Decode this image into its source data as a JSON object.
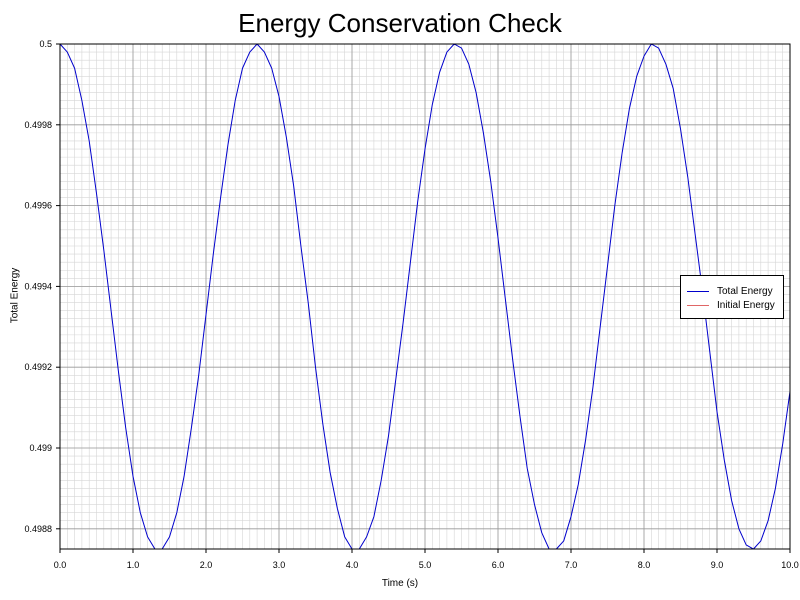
{
  "chart_data": {
    "type": "line",
    "title": "Energy Conservation Check",
    "xlabel": "Time (s)",
    "ylabel": "Total Energy",
    "xlim": [
      0,
      10
    ],
    "ylim": [
      0.49875,
      0.5
    ],
    "x_ticks": [
      "0.0",
      "1.0",
      "2.0",
      "3.0",
      "4.0",
      "5.0",
      "6.0",
      "7.0",
      "8.0",
      "9.0",
      "10.0"
    ],
    "y_ticks": [
      "0.4988",
      "0.499",
      "0.4992",
      "0.4994",
      "0.4996",
      "0.4998",
      "0.5"
    ],
    "grid": true,
    "legend_position": "right",
    "series": [
      {
        "name": "Total Energy",
        "color": "#0000cc",
        "x": [
          0.0,
          0.1,
          0.2,
          0.3,
          0.4,
          0.5,
          0.6,
          0.7,
          0.8,
          0.9,
          1.0,
          1.1,
          1.2,
          1.3,
          1.4,
          1.5,
          1.6,
          1.7,
          1.8,
          1.9,
          2.0,
          2.1,
          2.2,
          2.3,
          2.4,
          2.5,
          2.6,
          2.7,
          2.8,
          2.9,
          3.0,
          3.1,
          3.2,
          3.3,
          3.4,
          3.5,
          3.6,
          3.7,
          3.8,
          3.9,
          4.0,
          4.1,
          4.2,
          4.3,
          4.4,
          4.5,
          4.6,
          4.7,
          4.8,
          4.9,
          5.0,
          5.1,
          5.2,
          5.3,
          5.4,
          5.5,
          5.6,
          5.7,
          5.8,
          5.9,
          6.0,
          6.1,
          6.2,
          6.3,
          6.4,
          6.5,
          6.6,
          6.7,
          6.8,
          6.9,
          7.0,
          7.1,
          7.2,
          7.3,
          7.4,
          7.5,
          7.6,
          7.7,
          7.8,
          7.9,
          8.0,
          8.1,
          8.2,
          8.3,
          8.4,
          8.5,
          8.6,
          8.7,
          8.8,
          8.9,
          9.0,
          9.1,
          9.2,
          9.3,
          9.4,
          9.5,
          9.6,
          9.7,
          9.8,
          9.9,
          10.0
        ],
        "y": [
          0.5,
          0.49998,
          0.49994,
          0.49986,
          0.49976,
          0.49963,
          0.49949,
          0.49934,
          0.49919,
          0.49905,
          0.49893,
          0.49884,
          0.49878,
          0.49875,
          0.49875,
          0.49878,
          0.49884,
          0.49893,
          0.49905,
          0.49918,
          0.49933,
          0.49948,
          0.49962,
          0.49975,
          0.49986,
          0.49994,
          0.49998,
          0.5,
          0.49998,
          0.49994,
          0.49987,
          0.49977,
          0.49965,
          0.4995,
          0.49936,
          0.4992,
          0.49906,
          0.49894,
          0.49885,
          0.49878,
          0.49875,
          0.49875,
          0.49878,
          0.49883,
          0.49892,
          0.49903,
          0.49917,
          0.49931,
          0.49946,
          0.49961,
          0.49974,
          0.49985,
          0.49993,
          0.49998,
          0.5,
          0.49999,
          0.49995,
          0.49988,
          0.49978,
          0.49966,
          0.49952,
          0.49937,
          0.49922,
          0.49908,
          0.49895,
          0.49886,
          0.49879,
          0.49875,
          0.49875,
          0.49877,
          0.49883,
          0.49891,
          0.49902,
          0.49915,
          0.4993,
          0.49945,
          0.4996,
          0.49973,
          0.49984,
          0.49992,
          0.49997,
          0.5,
          0.49999,
          0.49995,
          0.49989,
          0.49979,
          0.49967,
          0.49953,
          0.49939,
          0.49924,
          0.49909,
          0.49897,
          0.49887,
          0.4988,
          0.49876,
          0.49875,
          0.49877,
          0.49882,
          0.4989,
          0.49901,
          0.49914
        ]
      },
      {
        "name": "Initial Energy",
        "color": "#e06666",
        "x": [
          0,
          10
        ],
        "y": [
          0.5,
          0.5
        ]
      }
    ]
  }
}
